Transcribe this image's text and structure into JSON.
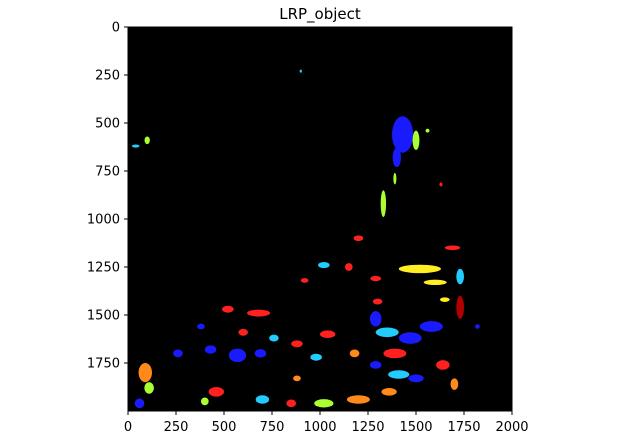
{
  "chart_data": {
    "type": "heatmap",
    "title": "LRP_object",
    "xlabel": "",
    "ylabel": "",
    "xlim": [
      0,
      2000
    ],
    "ylim": [
      2000,
      0
    ],
    "x_ticks": [
      0,
      250,
      500,
      750,
      1000,
      1250,
      1500,
      1750,
      2000
    ],
    "y_ticks": [
      0,
      250,
      500,
      750,
      1000,
      1250,
      1500,
      1750
    ],
    "background": "#000000",
    "colors": {
      "red": "#ff2020",
      "blue": "#1a1aff",
      "dark_red": "#b00000",
      "yellow_green": "#aaff33",
      "yellow": "#ffee22",
      "cyan": "#22ccff",
      "orange": "#ff8a1a"
    },
    "regions": [
      {
        "x": 1430,
        "y": 560,
        "rx": 55,
        "ry": 95,
        "color": "blue"
      },
      {
        "x": 1400,
        "y": 680,
        "rx": 22,
        "ry": 50,
        "color": "blue"
      },
      {
        "x": 1500,
        "y": 590,
        "rx": 18,
        "ry": 50,
        "color": "yellow_green"
      },
      {
        "x": 1560,
        "y": 540,
        "rx": 10,
        "ry": 10,
        "color": "yellow_green"
      },
      {
        "x": 1330,
        "y": 920,
        "rx": 14,
        "ry": 70,
        "color": "yellow_green"
      },
      {
        "x": 1390,
        "y": 790,
        "rx": 8,
        "ry": 30,
        "color": "yellow_green"
      },
      {
        "x": 1520,
        "y": 1260,
        "rx": 110,
        "ry": 22,
        "color": "yellow"
      },
      {
        "x": 1600,
        "y": 1330,
        "rx": 60,
        "ry": 14,
        "color": "yellow"
      },
      {
        "x": 1650,
        "y": 1420,
        "rx": 25,
        "ry": 12,
        "color": "yellow"
      },
      {
        "x": 1690,
        "y": 1150,
        "rx": 40,
        "ry": 12,
        "color": "red"
      },
      {
        "x": 1730,
        "y": 1300,
        "rx": 20,
        "ry": 40,
        "color": "cyan"
      },
      {
        "x": 1730,
        "y": 1460,
        "rx": 20,
        "ry": 60,
        "color": "dark_red"
      },
      {
        "x": 1200,
        "y": 1100,
        "rx": 25,
        "ry": 15,
        "color": "red"
      },
      {
        "x": 1150,
        "y": 1250,
        "rx": 20,
        "ry": 20,
        "color": "red"
      },
      {
        "x": 1020,
        "y": 1240,
        "rx": 30,
        "ry": 16,
        "color": "cyan"
      },
      {
        "x": 920,
        "y": 1320,
        "rx": 20,
        "ry": 12,
        "color": "red"
      },
      {
        "x": 680,
        "y": 1490,
        "rx": 60,
        "ry": 18,
        "color": "red"
      },
      {
        "x": 520,
        "y": 1470,
        "rx": 30,
        "ry": 18,
        "color": "red"
      },
      {
        "x": 1290,
        "y": 1310,
        "rx": 28,
        "ry": 14,
        "color": "red"
      },
      {
        "x": 1290,
        "y": 1520,
        "rx": 30,
        "ry": 40,
        "color": "blue"
      },
      {
        "x": 1350,
        "y": 1590,
        "rx": 60,
        "ry": 25,
        "color": "cyan"
      },
      {
        "x": 1470,
        "y": 1620,
        "rx": 60,
        "ry": 30,
        "color": "blue"
      },
      {
        "x": 1580,
        "y": 1560,
        "rx": 60,
        "ry": 28,
        "color": "blue"
      },
      {
        "x": 1390,
        "y": 1700,
        "rx": 60,
        "ry": 25,
        "color": "red"
      },
      {
        "x": 1410,
        "y": 1810,
        "rx": 55,
        "ry": 22,
        "color": "cyan"
      },
      {
        "x": 1290,
        "y": 1760,
        "rx": 30,
        "ry": 20,
        "color": "blue"
      },
      {
        "x": 1180,
        "y": 1700,
        "rx": 25,
        "ry": 20,
        "color": "orange"
      },
      {
        "x": 1040,
        "y": 1600,
        "rx": 40,
        "ry": 20,
        "color": "red"
      },
      {
        "x": 980,
        "y": 1720,
        "rx": 30,
        "ry": 18,
        "color": "cyan"
      },
      {
        "x": 880,
        "y": 1650,
        "rx": 30,
        "ry": 18,
        "color": "red"
      },
      {
        "x": 760,
        "y": 1620,
        "rx": 25,
        "ry": 18,
        "color": "cyan"
      },
      {
        "x": 690,
        "y": 1700,
        "rx": 30,
        "ry": 22,
        "color": "blue"
      },
      {
        "x": 570,
        "y": 1710,
        "rx": 45,
        "ry": 35,
        "color": "blue"
      },
      {
        "x": 430,
        "y": 1680,
        "rx": 30,
        "ry": 22,
        "color": "blue"
      },
      {
        "x": 600,
        "y": 1590,
        "rx": 25,
        "ry": 18,
        "color": "red"
      },
      {
        "x": 380,
        "y": 1560,
        "rx": 20,
        "ry": 15,
        "color": "blue"
      },
      {
        "x": 260,
        "y": 1700,
        "rx": 25,
        "ry": 20,
        "color": "blue"
      },
      {
        "x": 90,
        "y": 1800,
        "rx": 35,
        "ry": 50,
        "color": "orange"
      },
      {
        "x": 110,
        "y": 1880,
        "rx": 25,
        "ry": 30,
        "color": "yellow_green"
      },
      {
        "x": 60,
        "y": 1960,
        "rx": 25,
        "ry": 25,
        "color": "blue"
      },
      {
        "x": 460,
        "y": 1900,
        "rx": 40,
        "ry": 25,
        "color": "red"
      },
      {
        "x": 400,
        "y": 1950,
        "rx": 20,
        "ry": 20,
        "color": "yellow_green"
      },
      {
        "x": 700,
        "y": 1940,
        "rx": 35,
        "ry": 22,
        "color": "cyan"
      },
      {
        "x": 850,
        "y": 1960,
        "rx": 25,
        "ry": 20,
        "color": "red"
      },
      {
        "x": 1020,
        "y": 1960,
        "rx": 50,
        "ry": 22,
        "color": "yellow_green"
      },
      {
        "x": 1200,
        "y": 1940,
        "rx": 60,
        "ry": 22,
        "color": "orange"
      },
      {
        "x": 1360,
        "y": 1900,
        "rx": 40,
        "ry": 20,
        "color": "orange"
      },
      {
        "x": 1500,
        "y": 1830,
        "rx": 40,
        "ry": 20,
        "color": "blue"
      },
      {
        "x": 1640,
        "y": 1760,
        "rx": 35,
        "ry": 25,
        "color": "red"
      },
      {
        "x": 1820,
        "y": 1560,
        "rx": 12,
        "ry": 12,
        "color": "blue"
      },
      {
        "x": 100,
        "y": 590,
        "rx": 14,
        "ry": 20,
        "color": "yellow_green"
      },
      {
        "x": 40,
        "y": 620,
        "rx": 20,
        "ry": 8,
        "color": "cyan"
      },
      {
        "x": 900,
        "y": 230,
        "rx": 6,
        "ry": 8,
        "color": "cyan"
      },
      {
        "x": 1630,
        "y": 820,
        "rx": 8,
        "ry": 10,
        "color": "red"
      },
      {
        "x": 1700,
        "y": 1860,
        "rx": 20,
        "ry": 30,
        "color": "orange"
      },
      {
        "x": 880,
        "y": 1830,
        "rx": 20,
        "ry": 15,
        "color": "orange"
      },
      {
        "x": 1300,
        "y": 1430,
        "rx": 25,
        "ry": 15,
        "color": "red"
      }
    ]
  }
}
